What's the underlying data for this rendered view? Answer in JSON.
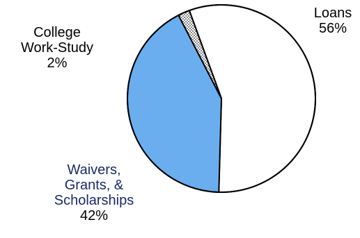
{
  "chart_data": {
    "type": "pie",
    "title": "",
    "slices": [
      {
        "label": "Loans",
        "value": 56,
        "display_value": "56%",
        "color": "#ffffff",
        "pattern": "none"
      },
      {
        "label": "College\nWork-Study",
        "value": 2,
        "display_value": "2%",
        "color": "#ffffff",
        "pattern": "dotted"
      },
      {
        "label": "Waivers,\nGrants, &\nScholarships",
        "value": 42,
        "display_value": "42%",
        "color": "#6aaef0",
        "pattern": "none",
        "label_color": "#1a2a6c"
      }
    ],
    "legend": "none",
    "label_placement": "outside"
  }
}
